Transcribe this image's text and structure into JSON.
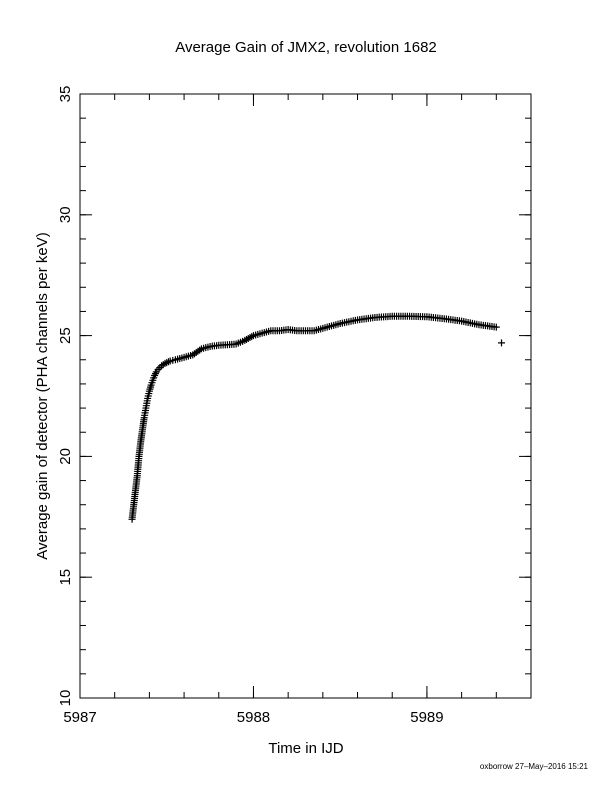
{
  "footer": "oxborrow 27–May–2016 15:21",
  "chart_data": {
    "type": "scatter",
    "title": "Average Gain of JMX2, revolution 1682",
    "xlabel": "Time in IJD",
    "ylabel": "Average gain of detector (PHA channels per keV)",
    "xlim": [
      5987,
      5989.6
    ],
    "ylim": [
      10,
      35
    ],
    "xticks": [
      5987,
      5988,
      5989
    ],
    "yticks": [
      10,
      15,
      20,
      25,
      30,
      35
    ],
    "grid": false,
    "marker": "+",
    "color": "#000000",
    "series": [
      {
        "x": [
          5987.3,
          5987.31,
          5987.32,
          5987.33,
          5987.34,
          5987.35,
          5987.36,
          5987.37,
          5987.38,
          5987.39,
          5987.4,
          5987.41,
          5987.42,
          5987.43,
          5987.44,
          5987.45,
          5987.47,
          5987.49,
          5987.52,
          5987.55,
          5987.6,
          5987.65,
          5987.7,
          5987.75,
          5987.8,
          5987.85,
          5987.9,
          5987.95,
          5988.0,
          5988.05,
          5988.1,
          5988.15,
          5988.2,
          5988.25,
          5988.3,
          5988.35,
          5988.4,
          5988.5,
          5988.6,
          5988.7,
          5988.8,
          5988.9,
          5989.0,
          5989.1,
          5989.2,
          5989.3,
          5989.4,
          5989.43
        ],
        "y": [
          17.4,
          18.0,
          18.6,
          19.2,
          20.0,
          20.6,
          21.1,
          21.6,
          22.0,
          22.4,
          22.7,
          22.95,
          23.15,
          23.35,
          23.5,
          23.6,
          23.75,
          23.85,
          23.95,
          24.0,
          24.1,
          24.2,
          24.45,
          24.55,
          24.6,
          24.62,
          24.65,
          24.8,
          25.0,
          25.1,
          25.2,
          25.2,
          25.25,
          25.2,
          25.2,
          25.2,
          25.3,
          25.5,
          25.65,
          25.75,
          25.8,
          25.8,
          25.78,
          25.7,
          25.6,
          25.45,
          25.35,
          24.7
        ]
      }
    ]
  }
}
